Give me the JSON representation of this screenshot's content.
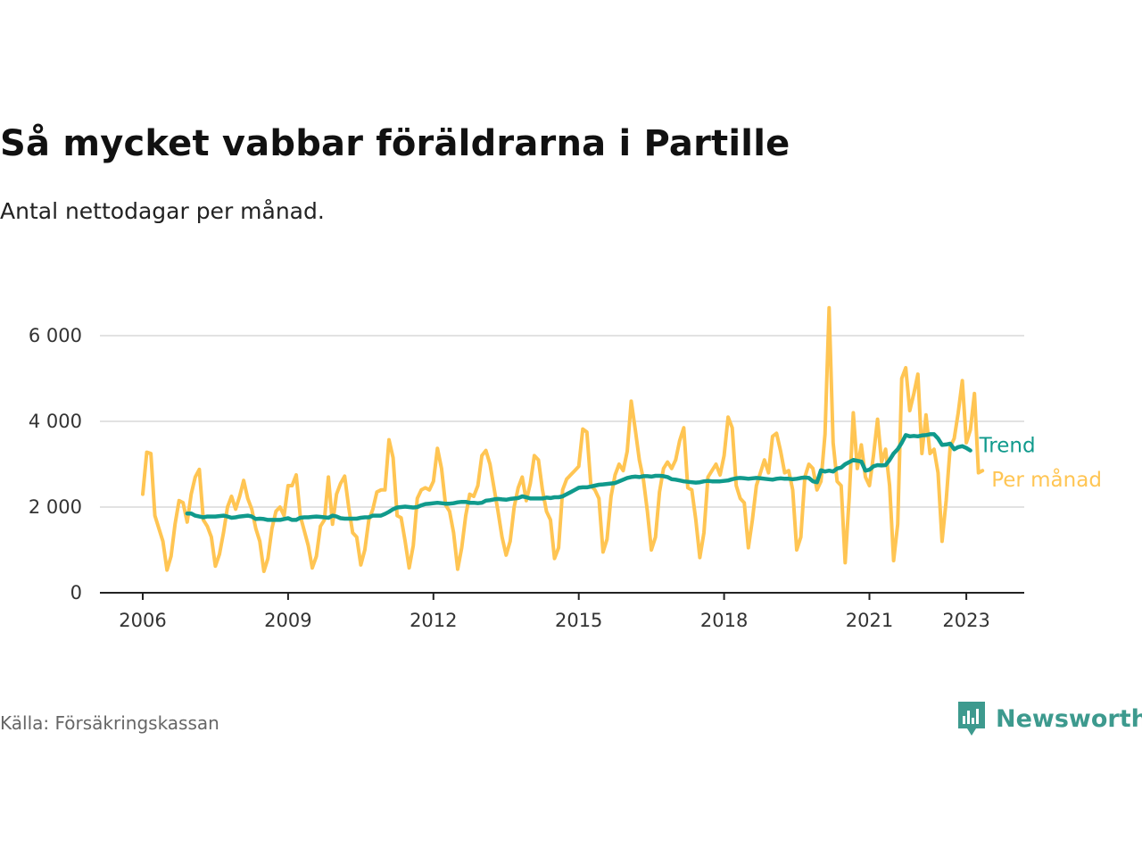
{
  "chart_data": {
    "type": "line",
    "title": "Så mycket vabbar föräldrarna i Partille",
    "subtitle": "Antal nettodagar per månad.",
    "x_ticks": [
      "2006",
      "2009",
      "2012",
      "2015",
      "2018",
      "2021",
      "2023"
    ],
    "y_ticks": [
      "0",
      "2 000",
      "4 000",
      "6 000"
    ],
    "ylim": [
      0,
      6000
    ],
    "grid": true,
    "series": [
      {
        "name": "Per månad",
        "color": "#ffc553",
        "start": "2006-01",
        "values": [
          2300,
          3280,
          3250,
          1800,
          1500,
          1200,
          530,
          850,
          1600,
          2150,
          2100,
          1650,
          2300,
          2700,
          2880,
          1700,
          1550,
          1300,
          620,
          900,
          1400,
          2000,
          2250,
          1950,
          2250,
          2620,
          2200,
          1950,
          1500,
          1200,
          500,
          800,
          1500,
          1900,
          2000,
          1800,
          2500,
          2500,
          2750,
          1800,
          1450,
          1100,
          580,
          850,
          1550,
          1700,
          2700,
          1600,
          2300,
          2550,
          2720,
          2000,
          1400,
          1300,
          650,
          1000,
          1700,
          1950,
          2350,
          2400,
          2400,
          3570,
          3150,
          1800,
          1750,
          1200,
          580,
          1100,
          2200,
          2400,
          2450,
          2400,
          2600,
          3370,
          2900,
          2050,
          1900,
          1400,
          550,
          1050,
          1800,
          2300,
          2250,
          2500,
          3200,
          3320,
          3000,
          2450,
          1900,
          1300,
          880,
          1200,
          2000,
          2450,
          2700,
          2150,
          2550,
          3200,
          3100,
          2400,
          1900,
          1700,
          800,
          1050,
          2400,
          2650,
          2750,
          2850,
          2950,
          3820,
          3750,
          2500,
          2400,
          2200,
          950,
          1250,
          2250,
          2750,
          3000,
          2850,
          3300,
          4470,
          3800,
          3100,
          2650,
          1900,
          1000,
          1300,
          2350,
          2900,
          3050,
          2900,
          3100,
          3550,
          3850,
          2450,
          2400,
          1700,
          820,
          1400,
          2700,
          2850,
          3000,
          2750,
          3200,
          4100,
          3850,
          2500,
          2200,
          2100,
          1050,
          1700,
          2500,
          2800,
          3100,
          2800,
          3650,
          3720,
          3300,
          2800,
          2850,
          2400,
          1000,
          1300,
          2700,
          3000,
          2900,
          2400,
          2600,
          3700,
          6650,
          3500,
          2600,
          2500,
          700,
          2250,
          4200,
          2900,
          3450,
          2700,
          2500,
          3200,
          4050,
          3050,
          3350,
          2500,
          750,
          1600,
          5000,
          5250,
          4250,
          4650,
          5100,
          3250,
          4150,
          3250,
          3350,
          2800,
          1200,
          2150,
          3400,
          3600,
          4200,
          4950,
          3500,
          3800,
          4650,
          2800,
          2850
        ]
      },
      {
        "name": "Trend",
        "color": "#109a8c",
        "start": "2006-12",
        "values": [
          1850,
          1850,
          1800,
          1780,
          1760,
          1780,
          1780,
          1780,
          1790,
          1800,
          1780,
          1750,
          1760,
          1780,
          1790,
          1800,
          1780,
          1720,
          1730,
          1720,
          1700,
          1700,
          1700,
          1700,
          1720,
          1740,
          1700,
          1700,
          1750,
          1760,
          1760,
          1770,
          1780,
          1770,
          1760,
          1750,
          1800,
          1780,
          1740,
          1730,
          1730,
          1730,
          1730,
          1750,
          1760,
          1760,
          1800,
          1800,
          1800,
          1840,
          1890,
          1950,
          1990,
          2000,
          2010,
          2000,
          1990,
          2000,
          2040,
          2070,
          2080,
          2090,
          2100,
          2090,
          2080,
          2080,
          2090,
          2110,
          2120,
          2120,
          2100,
          2100,
          2090,
          2100,
          2150,
          2160,
          2180,
          2190,
          2180,
          2170,
          2190,
          2200,
          2210,
          2250,
          2230,
          2200,
          2200,
          2200,
          2200,
          2220,
          2210,
          2230,
          2230,
          2250,
          2300,
          2350,
          2400,
          2450,
          2460,
          2460,
          2480,
          2500,
          2520,
          2530,
          2540,
          2550,
          2560,
          2600,
          2640,
          2680,
          2700,
          2710,
          2700,
          2720,
          2720,
          2710,
          2730,
          2730,
          2720,
          2700,
          2650,
          2640,
          2620,
          2600,
          2590,
          2580,
          2570,
          2580,
          2600,
          2610,
          2600,
          2600,
          2600,
          2610,
          2620,
          2650,
          2670,
          2680,
          2670,
          2660,
          2670,
          2680,
          2670,
          2660,
          2650,
          2640,
          2660,
          2670,
          2660,
          2660,
          2650,
          2660,
          2680,
          2690,
          2680,
          2600,
          2580,
          2860,
          2830,
          2850,
          2830,
          2900,
          2920,
          3000,
          3050,
          3100,
          3080,
          3060,
          2850,
          2870,
          2950,
          2980,
          2970,
          2980,
          3100,
          3250,
          3350,
          3500,
          3680,
          3650,
          3660,
          3650,
          3670,
          3680,
          3700,
          3700,
          3600,
          3450,
          3460,
          3480,
          3350,
          3400,
          3420,
          3380,
          3320
        ]
      }
    ]
  },
  "source": "Källa: Försäkringskassan",
  "brand": "Newsworthy"
}
